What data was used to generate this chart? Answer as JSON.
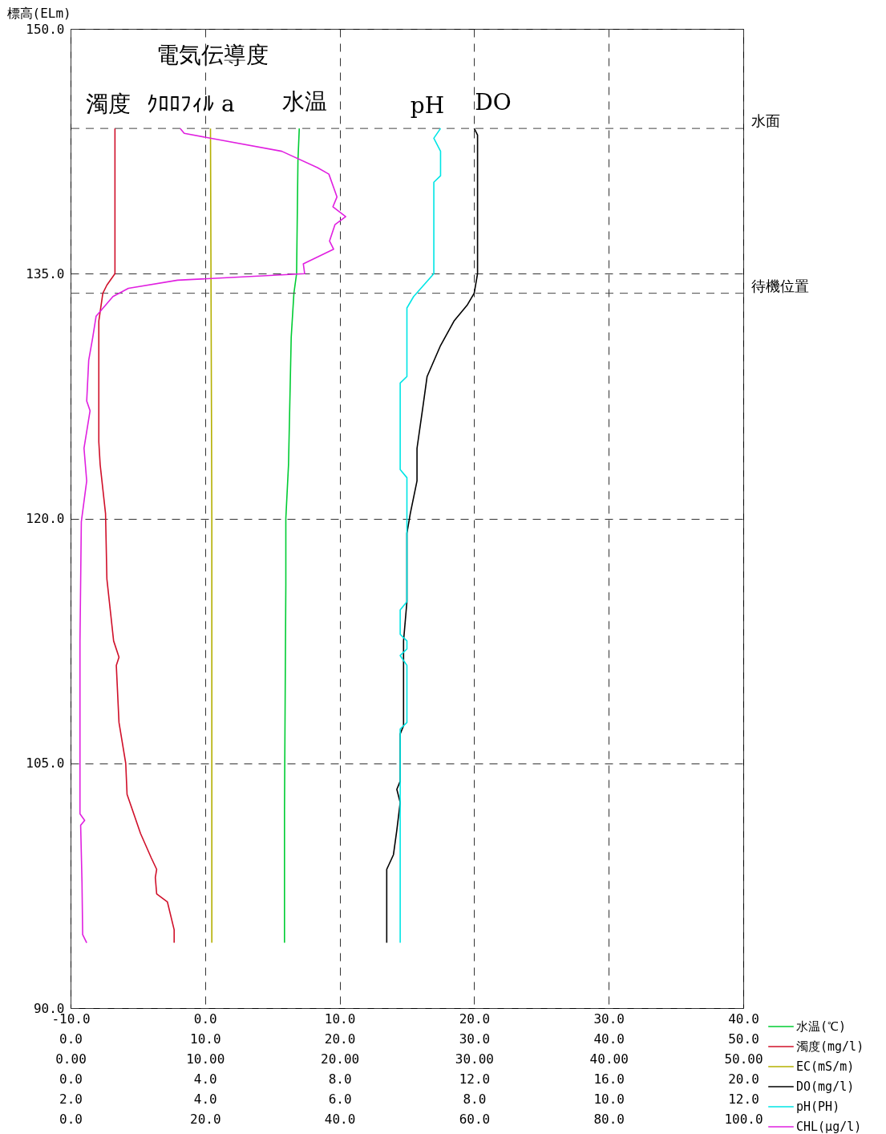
{
  "chart_data": [
    {
      "type": "line",
      "ylabel": "標高(ELm)",
      "ylim": [
        90,
        150
      ],
      "yticks": [
        {
          "value": 90,
          "label": "90.0"
        },
        {
          "value": 105,
          "label": "105.0"
        },
        {
          "value": 120,
          "label": "120.0"
        },
        {
          "value": 135,
          "label": "135.0"
        },
        {
          "value": 150,
          "label": "150.0"
        }
      ],
      "xlim": [
        -10,
        40
      ],
      "xticks": [
        {
          "value": -10,
          "label": "-10.0"
        },
        {
          "value": 0,
          "label": "0.0"
        },
        {
          "value": 10,
          "label": "10.0"
        },
        {
          "value": 20,
          "label": "20.0"
        },
        {
          "value": 30,
          "label": "30.0"
        },
        {
          "value": 40,
          "label": "40.0"
        }
      ],
      "series": [
        {
          "name": "水温(℃)",
          "color": "#00cc33",
          "x": [
            7.0,
            6.9,
            6.8,
            6.6,
            6.4,
            6.2,
            6.0,
            6.0,
            5.9,
            5.9,
            5.9
          ],
          "values": [
            143.9,
            141.9,
            135.0,
            133.8,
            131.1,
            123.3,
            120.0,
            115.9,
            102.1,
            97.7,
            94.0
          ]
        }
      ],
      "ref_lines": [
        {
          "axis": "y",
          "value": 143.9,
          "label": "水面",
          "line_style": "dashed"
        },
        {
          "axis": "y",
          "value": 133.8,
          "label": "待機位置",
          "line_style": "dashed"
        }
      ],
      "annotations": [
        "電気伝導度",
        "濁度",
        "ｸﾛﾛﾌｨﾙ a",
        "水温",
        "pH",
        "DO"
      ],
      "grid": true,
      "legend": "bottom right"
    },
    {
      "type": "line",
      "ylim": [
        90,
        150
      ],
      "tick_labels": "x",
      "xlim": [
        0,
        50
      ],
      "xticks": [
        {
          "value": 0,
          "label": "0.0"
        },
        {
          "value": 10,
          "label": "10.0"
        },
        {
          "value": 20,
          "label": "20.0"
        },
        {
          "value": 30,
          "label": "30.0"
        },
        {
          "value": 40,
          "label": "40.0"
        },
        {
          "value": 50,
          "label": "50.0"
        }
      ],
      "series": [
        {
          "name": "濁度(mg/l)",
          "color": "#d0102a",
          "x": [
            3.3,
            3.3,
            3.3,
            2.7,
            2.4,
            2.1,
            2.1,
            2.2,
            2.6,
            2.7,
            3.2,
            3.6,
            3.4,
            3.6,
            4.1,
            4.2,
            5.2,
            6.0,
            6.4,
            6.3,
            6.4,
            7.2,
            7.7,
            7.7
          ],
          "values": [
            143.9,
            137.0,
            135.0,
            134.3,
            133.8,
            132.1,
            124.7,
            123.3,
            120.3,
            116.3,
            112.5,
            111.5,
            111.0,
            107.5,
            105.0,
            103.1,
            100.7,
            99.2,
            98.5,
            98.0,
            97.0,
            96.5,
            94.8,
            94.0
          ]
        }
      ],
      "legend": "bottom right"
    },
    {
      "type": "line",
      "ylim": [
        90,
        150
      ],
      "tick_labels": "x",
      "xlim": [
        0,
        50
      ],
      "xticks": [
        {
          "value": 0,
          "label": "0.00"
        },
        {
          "value": 10,
          "label": "10.00"
        },
        {
          "value": 20,
          "label": "20.00"
        },
        {
          "value": 30,
          "label": "30.00"
        },
        {
          "value": 40,
          "label": "40.00"
        },
        {
          "value": 50,
          "label": "50.00"
        }
      ],
      "series": [
        {
          "name": "EC(mS/m)",
          "color": "#b5b000",
          "x": [
            10.4,
            10.5,
            10.5
          ],
          "values": [
            143.9,
            120.0,
            94.0
          ]
        }
      ],
      "legend": "bottom right"
    },
    {
      "type": "line",
      "ylim": [
        90,
        150
      ],
      "tick_labels": "x",
      "xlim": [
        0,
        20
      ],
      "xticks": [
        {
          "value": 0,
          "label": "0.0"
        },
        {
          "value": 4,
          "label": "4.0"
        },
        {
          "value": 8,
          "label": "8.0"
        },
        {
          "value": 12,
          "label": "12.0"
        },
        {
          "value": 16,
          "label": "16.0"
        },
        {
          "value": 20,
          "label": "20.0"
        }
      ],
      "series": [
        {
          "name": "DO(mg/l)",
          "color": "#000000",
          "x": [
            12.0,
            12.1,
            12.1,
            12.0,
            11.8,
            11.4,
            11.0,
            10.6,
            10.5,
            10.3,
            10.3,
            10.1,
            10.0,
            10.0,
            9.9,
            9.9,
            9.8,
            9.8,
            9.7,
            9.8,
            9.7,
            9.6,
            9.4,
            9.4
          ],
          "values": [
            143.9,
            143.5,
            135.0,
            133.8,
            133.1,
            132.1,
            130.6,
            128.7,
            127.2,
            124.3,
            122.3,
            120.3,
            119.1,
            114.9,
            112.5,
            107.3,
            106.8,
            103.9,
            103.4,
            102.6,
            100.9,
            99.4,
            98.5,
            94.0
          ]
        }
      ],
      "legend": "bottom right"
    },
    {
      "type": "line",
      "ylim": [
        90,
        150
      ],
      "tick_labels": "x",
      "xlim": [
        2,
        12
      ],
      "xticks": [
        {
          "value": 2,
          "label": "2.0"
        },
        {
          "value": 4,
          "label": "4.0"
        },
        {
          "value": 6,
          "label": "6.0"
        },
        {
          "value": 8,
          "label": "8.0"
        },
        {
          "value": 10,
          "label": "10.0"
        },
        {
          "value": 12,
          "label": "12.0"
        }
      ],
      "series": [
        {
          "name": "pH(PH)",
          "color": "#00e5e5",
          "x": [
            7.5,
            7.4,
            7.5,
            7.5,
            7.4,
            7.4,
            7.1,
            7.0,
            7.0,
            6.9,
            6.9,
            7.0,
            7.0,
            6.9,
            6.9,
            7.0,
            7.0,
            6.9,
            7.0,
            7.0,
            7.0,
            6.9,
            6.9
          ],
          "values": [
            143.9,
            143.3,
            142.5,
            141.0,
            140.6,
            135.0,
            133.6,
            132.9,
            128.7,
            128.3,
            123.0,
            122.5,
            114.9,
            114.4,
            112.9,
            112.5,
            112.0,
            111.6,
            111.0,
            110.5,
            107.5,
            107.1,
            94.0
          ]
        }
      ],
      "legend": "bottom right"
    },
    {
      "type": "line",
      "ylim": [
        90,
        150
      ],
      "tick_labels": "x",
      "xlim": [
        0,
        100
      ],
      "xticks": [
        {
          "value": 0,
          "label": "0.0"
        },
        {
          "value": 20,
          "label": "20.0"
        },
        {
          "value": 40,
          "label": "40.0"
        },
        {
          "value": 60,
          "label": "60.0"
        },
        {
          "value": 80,
          "label": "80.0"
        },
        {
          "value": 100,
          "label": "100.0"
        }
      ],
      "series": [
        {
          "name": "CHL(μg/l)",
          "color": "#e020e0",
          "x": [
            16.3,
            16.9,
            31.4,
            36.7,
            38.4,
            39.6,
            39.0,
            40.9,
            39.3,
            38.5,
            39.1,
            34.6,
            34.8,
            15.9,
            8.6,
            6.3,
            3.8,
            3.3,
            2.7,
            2.4,
            2.9,
            2.0,
            2.4,
            1.6,
            1.4,
            1.4,
            2.1,
            1.5,
            1.7,
            1.8,
            2.4
          ],
          "values": [
            143.9,
            143.6,
            142.5,
            141.5,
            141.1,
            139.7,
            139.1,
            138.5,
            138.0,
            137.0,
            136.5,
            135.6,
            135.0,
            134.6,
            134.1,
            133.6,
            132.4,
            131.1,
            129.7,
            127.2,
            126.6,
            124.3,
            122.3,
            119.8,
            112.5,
            101.9,
            101.5,
            101.2,
            97.7,
            94.5,
            94.0
          ]
        }
      ],
      "legend": "bottom right"
    }
  ]
}
